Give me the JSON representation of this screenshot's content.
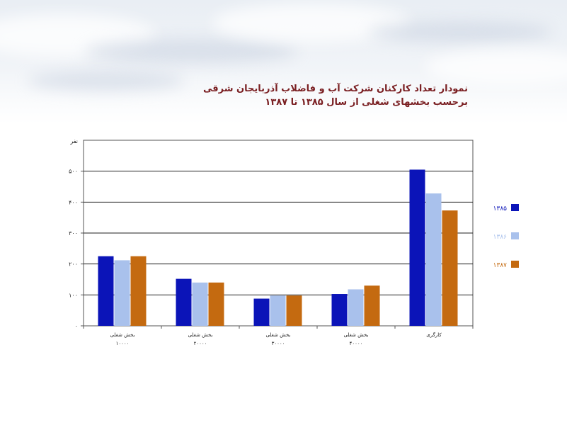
{
  "title": {
    "line1": "نمودار تعداد کارکنان شرکت آب و فاضلاب آذربایجان شرقی",
    "line2": "برحسب بخشهای شغلی از سال ۱۳۸۵ تا ۱۳۸۷"
  },
  "colors": {
    "series1": "#0b14b8",
    "series2": "#a9c1ec",
    "series3": "#c46a10",
    "title": "#7a1f22",
    "axis": "#555555",
    "grid": "#222222"
  },
  "chart_data": {
    "type": "bar",
    "ylabel": "نفر",
    "ylim": [
      0,
      600
    ],
    "yticks": [
      0,
      100,
      200,
      300,
      400,
      500
    ],
    "ytick_labels": [
      "۰",
      "۱۰۰",
      "۲۰۰",
      "۳۰۰",
      "۴۰۰",
      "۵۰۰"
    ],
    "grid": true,
    "legend_position": "right",
    "categories": [
      {
        "line1": "بخش شغلی",
        "line2": "۱۰۰۰۰"
      },
      {
        "line1": "بخش شغلی",
        "line2": "۲۰۰۰۰"
      },
      {
        "line1": "بخش شغلی",
        "line2": "۳۰۰۰۰"
      },
      {
        "line1": "بخش شغلی",
        "line2": "۴۰۰۰۰"
      },
      {
        "line1": "کارگری",
        "line2": ""
      }
    ],
    "series": [
      {
        "name": "۱۳۸۵",
        "values": [
          225,
          152,
          88,
          103,
          505
        ]
      },
      {
        "name": "۱۳۸۶",
        "values": [
          212,
          140,
          98,
          118,
          428
        ]
      },
      {
        "name": "۱۳۸۷",
        "values": [
          225,
          140,
          98,
          130,
          373
        ]
      }
    ]
  }
}
